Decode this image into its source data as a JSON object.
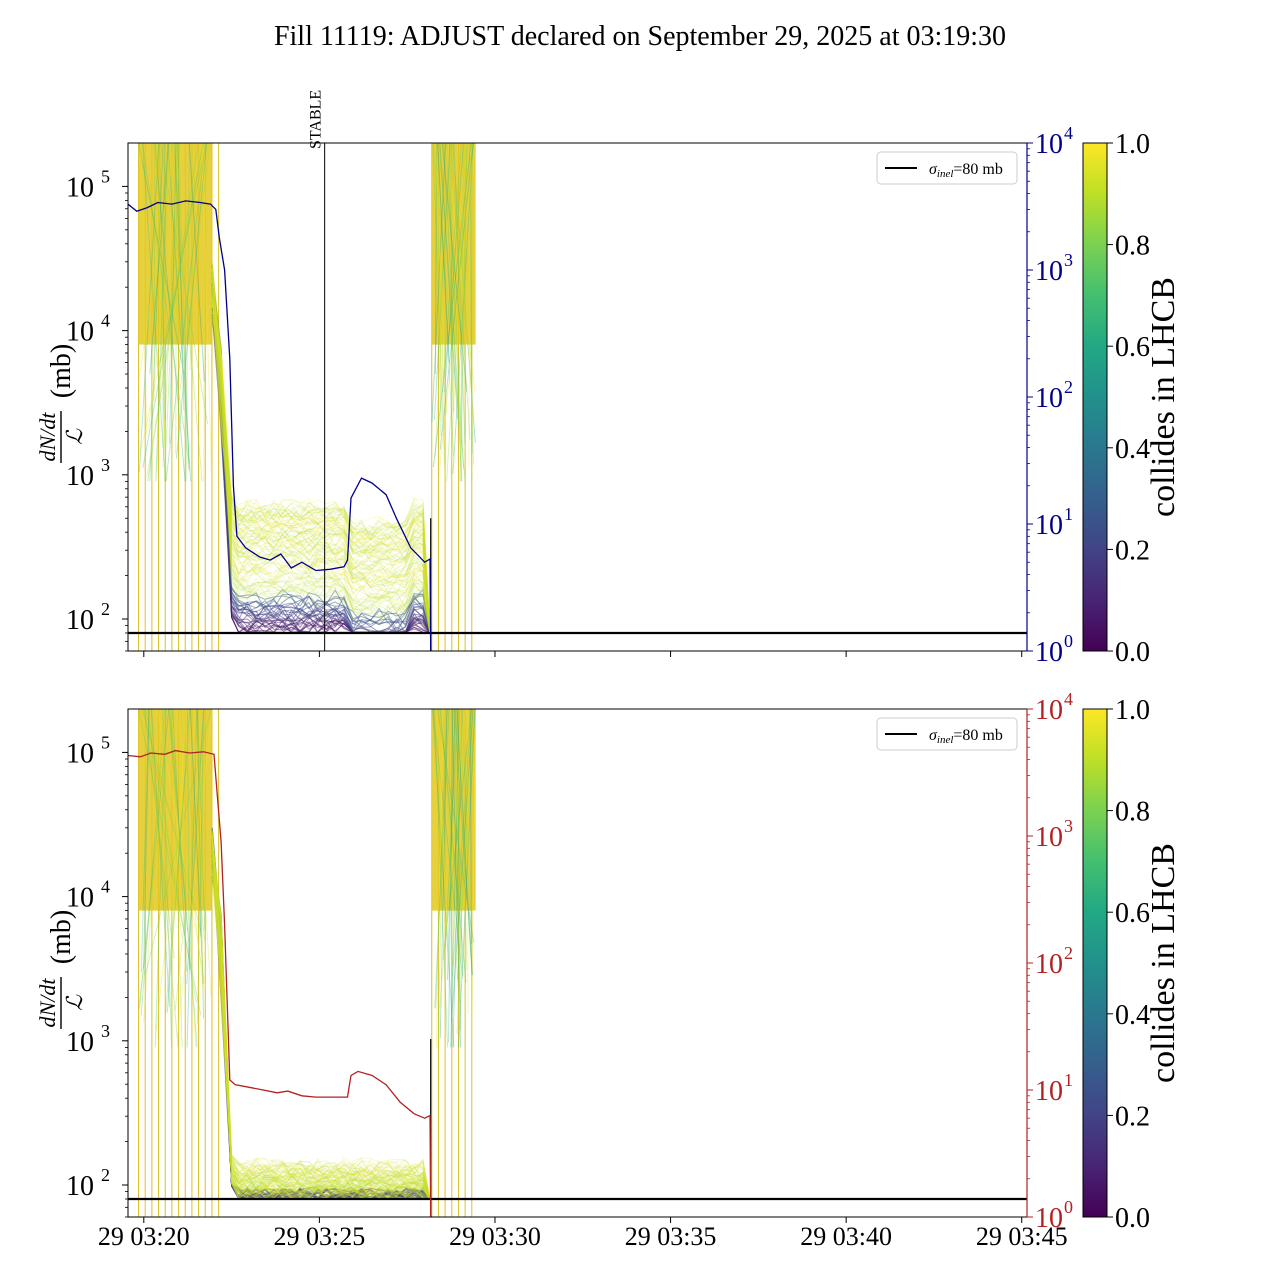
{
  "title": "Fill 11119: ADJUST declared on September 29, 2025 at 03:19:30",
  "colors": {
    "viridis_low": "#440154",
    "viridis_mid": "#21918c",
    "viridis_high": "#fde725",
    "top_right_axis": "#00008b",
    "bottom_right_axis": "#b22222",
    "reference_line": "#000000"
  },
  "chart_data": [
    {
      "type": "line",
      "panel": "top",
      "ylabel_num": "dN/dt",
      "ylabel_den": "ℒ",
      "ylabel_unit": "(mb)",
      "yscale": "log",
      "ylim": [
        60,
        200000
      ],
      "y_ticks": [
        {
          "value": 100,
          "exp": "2"
        },
        {
          "value": 1000,
          "exp": "3"
        },
        {
          "value": 10000,
          "exp": "4"
        },
        {
          "value": 100000,
          "exp": "5"
        }
      ],
      "xlim_minutes": [
        19.55,
        45.15
      ],
      "x_ticks": [
        "29 03:20",
        "29 03:25",
        "29 03:30",
        "29 03:35",
        "29 03:40",
        "29 03:45"
      ],
      "x_tick_minutes": [
        20,
        25,
        30,
        35,
        40,
        45
      ],
      "show_x_ticklabels": false,
      "legend": {
        "label_sym": "σ",
        "label_sub": "inel",
        "label_rest": "=80 mb",
        "position": "upper right"
      },
      "reference_line": {
        "value": 80,
        "color": "#000000"
      },
      "annotation": {
        "text": "STABLE",
        "minute": 25.15
      },
      "right_axis": {
        "color": "#00008b",
        "yscale": "log",
        "ylim": [
          1,
          10000
        ],
        "ticks": [
          {
            "value": 1,
            "exp": "0"
          },
          {
            "value": 10,
            "exp": "1"
          },
          {
            "value": 100,
            "exp": "2"
          },
          {
            "value": 1000,
            "exp": "3"
          },
          {
            "value": 10000,
            "exp": "4"
          }
        ],
        "series_points": [
          [
            19.55,
            3300
          ],
          [
            19.8,
            2900
          ],
          [
            20.1,
            3100
          ],
          [
            20.4,
            3400
          ],
          [
            20.8,
            3300
          ],
          [
            21.2,
            3500
          ],
          [
            21.6,
            3400
          ],
          [
            21.9,
            3300
          ],
          [
            22.05,
            3000
          ],
          [
            22.15,
            1800
          ],
          [
            22.3,
            1000
          ],
          [
            22.45,
            200
          ],
          [
            22.55,
            20
          ],
          [
            22.65,
            8
          ],
          [
            22.9,
            6.5
          ],
          [
            23.3,
            5.5
          ],
          [
            23.6,
            5.2
          ],
          [
            23.9,
            5.8
          ],
          [
            24.2,
            4.5
          ],
          [
            24.5,
            5
          ],
          [
            24.9,
            4.3
          ],
          [
            25.3,
            4.4
          ],
          [
            25.7,
            4.6
          ],
          [
            25.8,
            5.2
          ],
          [
            25.9,
            16
          ],
          [
            26.2,
            23
          ],
          [
            26.5,
            21
          ],
          [
            26.9,
            17
          ],
          [
            27.2,
            11
          ],
          [
            27.6,
            6.5
          ],
          [
            28.0,
            5.0
          ],
          [
            28.15,
            5.3
          ],
          [
            28.17,
            1
          ]
        ]
      },
      "colorbar": {
        "label": "collides in LHCB",
        "ticks": [
          "0.0",
          "0.2",
          "0.4",
          "0.6",
          "0.8",
          "1.0"
        ]
      }
    },
    {
      "type": "line",
      "panel": "bottom",
      "ylabel_num": "dN/dt",
      "ylabel_den": "ℒ",
      "ylabel_unit": "(mb)",
      "yscale": "log",
      "ylim": [
        60,
        200000
      ],
      "y_ticks": [
        {
          "value": 100,
          "exp": "2"
        },
        {
          "value": 1000,
          "exp": "3"
        },
        {
          "value": 10000,
          "exp": "4"
        },
        {
          "value": 100000,
          "exp": "5"
        }
      ],
      "xlim_minutes": [
        19.55,
        45.15
      ],
      "x_ticks": [
        "29 03:20",
        "29 03:25",
        "29 03:30",
        "29 03:35",
        "29 03:40",
        "29 03:45"
      ],
      "x_tick_minutes": [
        20,
        25,
        30,
        35,
        40,
        45
      ],
      "show_x_ticklabels": true,
      "legend": {
        "label_sym": "σ",
        "label_sub": "inel",
        "label_rest": "=80 mb",
        "position": "upper right"
      },
      "reference_line": {
        "value": 80,
        "color": "#000000"
      },
      "right_axis": {
        "color": "#b22222",
        "yscale": "log",
        "ylim": [
          1,
          10000
        ],
        "ticks": [
          {
            "value": 1,
            "exp": "0"
          },
          {
            "value": 10,
            "exp": "1"
          },
          {
            "value": 100,
            "exp": "2"
          },
          {
            "value": 1000,
            "exp": "3"
          },
          {
            "value": 10000,
            "exp": "4"
          }
        ],
        "series_points": [
          [
            19.55,
            4300
          ],
          [
            19.9,
            4200
          ],
          [
            20.2,
            4500
          ],
          [
            20.6,
            4400
          ],
          [
            20.9,
            4700
          ],
          [
            21.3,
            4500
          ],
          [
            21.7,
            4600
          ],
          [
            22.0,
            4400
          ],
          [
            22.1,
            2000
          ],
          [
            22.2,
            900
          ],
          [
            22.3,
            200
          ],
          [
            22.45,
            12
          ],
          [
            22.6,
            11
          ],
          [
            23.0,
            10.5
          ],
          [
            23.4,
            10
          ],
          [
            23.8,
            9.5
          ],
          [
            24.1,
            9.8
          ],
          [
            24.5,
            9
          ],
          [
            24.9,
            8.8
          ],
          [
            25.3,
            8.8
          ],
          [
            25.8,
            8.8
          ],
          [
            25.9,
            13
          ],
          [
            26.1,
            14
          ],
          [
            26.5,
            13
          ],
          [
            26.9,
            11
          ],
          [
            27.3,
            8
          ],
          [
            27.7,
            6.5
          ],
          [
            28.0,
            6.0
          ],
          [
            28.15,
            6.3
          ],
          [
            28.17,
            1
          ]
        ]
      },
      "colorbar": {
        "label": "collides in LHCB",
        "ticks": [
          "0.0",
          "0.2",
          "0.4",
          "0.6",
          "0.8",
          "1.0"
        ]
      }
    }
  ]
}
